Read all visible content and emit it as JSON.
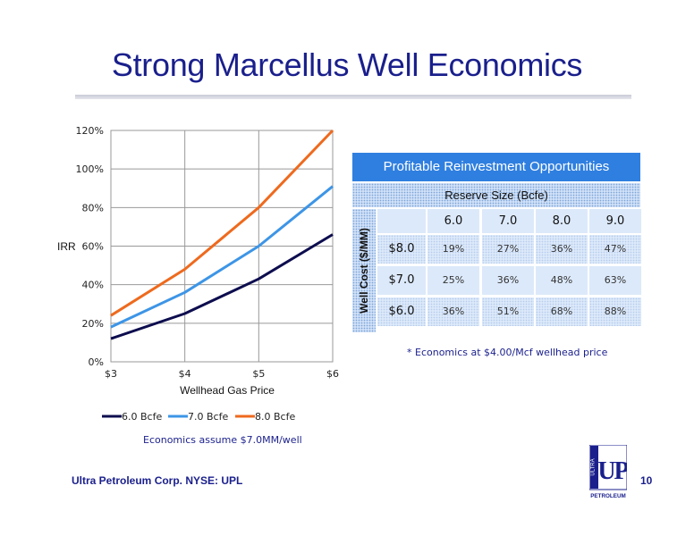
{
  "title": "Strong Marcellus Well Economics",
  "chart_data": {
    "type": "line",
    "x": [
      3,
      4,
      5,
      6
    ],
    "x_tick_labels": [
      "$3",
      "$4",
      "$5",
      "$6"
    ],
    "y_tick_labels": [
      "0%",
      "20%",
      "40%",
      "60%",
      "80%",
      "100%",
      "120%"
    ],
    "y_ticks": [
      0,
      20,
      40,
      60,
      80,
      100,
      120
    ],
    "xlim": [
      3,
      6
    ],
    "ylim": [
      0,
      120
    ],
    "xlabel": "Wellhead Gas Price",
    "ylabel": "IRR",
    "grid": true,
    "legend_position": "bottom",
    "series": [
      {
        "name": "6.0 Bcfe",
        "color": "#0d0d4f",
        "values": [
          12,
          25,
          43,
          66
        ]
      },
      {
        "name": "7.0 Bcfe",
        "color": "#3d95e6",
        "values": [
          18,
          36,
          60,
          91
        ]
      },
      {
        "name": "8.0 Bcfe",
        "color": "#ee6a1e",
        "values": [
          24,
          48,
          80,
          120
        ]
      }
    ],
    "note": "Economics assume $7.0MM/well"
  },
  "table": {
    "header": "Profitable Reinvestment Opportunities",
    "reserve_label": "Reserve Size (Bcfe)",
    "side_label": "Well Cost ($/MM)",
    "columns": [
      "6.0",
      "7.0",
      "8.0",
      "9.0"
    ],
    "rows": [
      {
        "label": "$8.0",
        "values": [
          "19%",
          "27%",
          "36%",
          "47%"
        ]
      },
      {
        "label": "$7.0",
        "values": [
          "25%",
          "36%",
          "48%",
          "63%"
        ]
      },
      {
        "label": "$6.0",
        "values": [
          "36%",
          "51%",
          "68%",
          "88%"
        ]
      }
    ],
    "note": "* Economics at $4.00/Mcf wellhead price"
  },
  "footer": {
    "company": "Ultra Petroleum Corp. NYSE: UPL",
    "page": "10"
  },
  "logo": {
    "top_text": "ULTRA",
    "mark": "UP",
    "bottom_text": "PETROLEUM"
  }
}
